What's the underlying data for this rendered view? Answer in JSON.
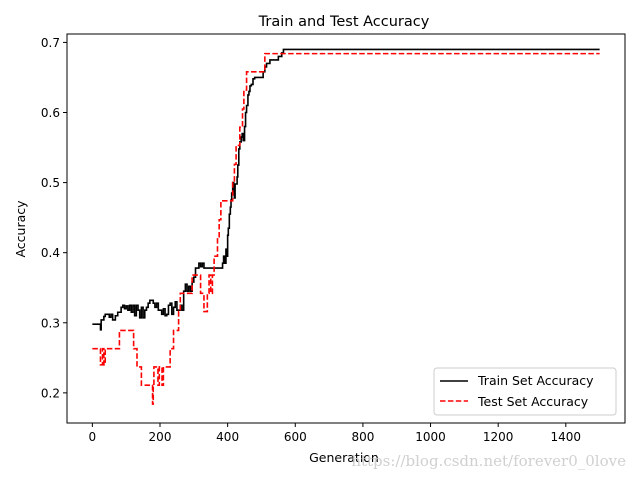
{
  "chart_data": {
    "type": "line",
    "title": "Train and Test Accuracy",
    "xlabel": "Generation",
    "ylabel": "Accuracy",
    "xlim": [
      -75,
      1575
    ],
    "ylim": [
      0.157,
      0.712
    ],
    "xticks": [
      0,
      200,
      400,
      600,
      800,
      1000,
      1200,
      1400
    ],
    "yticks": [
      0.2,
      0.3,
      0.4,
      0.5,
      0.6,
      0.7
    ],
    "yticklabels": [
      "0.2",
      "0.3",
      "0.4",
      "0.5",
      "0.6",
      "0.7"
    ],
    "grid": false,
    "legend_position": "lower-right",
    "series": [
      {
        "name": "Train Set Accuracy",
        "color": "#000000",
        "dash": "solid",
        "x": [
          0,
          22,
          24,
          26,
          30,
          34,
          38,
          42,
          50,
          55,
          60,
          68,
          75,
          80,
          85,
          90,
          95,
          100,
          105,
          110,
          115,
          120,
          125,
          130,
          135,
          140,
          145,
          150,
          155,
          160,
          165,
          170,
          175,
          180,
          185,
          190,
          195,
          200,
          205,
          210,
          215,
          220,
          225,
          230,
          235,
          240,
          245,
          250,
          255,
          260,
          265,
          270,
          275,
          280,
          285,
          290,
          295,
          300,
          305,
          310,
          315,
          320,
          325,
          330,
          335,
          340,
          345,
          350,
          355,
          360,
          365,
          370,
          375,
          380,
          385,
          388,
          392,
          395,
          398,
          400,
          402,
          405,
          408,
          410,
          412,
          415,
          418,
          420,
          422,
          425,
          428,
          430,
          433,
          436,
          440,
          443,
          446,
          450,
          453,
          456,
          460,
          463,
          466,
          470,
          475,
          480,
          485,
          490,
          495,
          500,
          505,
          510,
          515,
          520,
          525,
          530,
          535,
          540,
          545,
          550,
          555,
          560,
          565,
          570,
          580,
          600,
          700,
          800,
          900,
          1000,
          1100,
          1200,
          1300,
          1400,
          1500
        ],
        "y": [
          0.298,
          0.298,
          0.29,
          0.304,
          0.304,
          0.309,
          0.312,
          0.312,
          0.308,
          0.312,
          0.304,
          0.31,
          0.315,
          0.315,
          0.322,
          0.325,
          0.32,
          0.324,
          0.318,
          0.325,
          0.315,
          0.325,
          0.31,
          0.325,
          0.318,
          0.307,
          0.322,
          0.307,
          0.318,
          0.322,
          0.328,
          0.332,
          0.332,
          0.328,
          0.322,
          0.328,
          0.318,
          0.318,
          0.312,
          0.32,
          0.31,
          0.312,
          0.325,
          0.328,
          0.312,
          0.322,
          0.33,
          0.318,
          0.318,
          0.325,
          0.318,
          0.345,
          0.355,
          0.345,
          0.352,
          0.345,
          0.358,
          0.365,
          0.378,
          0.378,
          0.385,
          0.38,
          0.385,
          0.378,
          0.378,
          0.378,
          0.378,
          0.378,
          0.378,
          0.378,
          0.378,
          0.378,
          0.378,
          0.378,
          0.385,
          0.395,
          0.385,
          0.405,
          0.395,
          0.425,
          0.435,
          0.455,
          0.465,
          0.475,
          0.485,
          0.5,
          0.488,
          0.478,
          0.498,
          0.498,
          0.508,
          0.525,
          0.548,
          0.558,
          0.565,
          0.57,
          0.56,
          0.58,
          0.6,
          0.61,
          0.625,
          0.63,
          0.638,
          0.64,
          0.648,
          0.65,
          0.65,
          0.65,
          0.65,
          0.65,
          0.658,
          0.665,
          0.67,
          0.67,
          0.675,
          0.675,
          0.675,
          0.675,
          0.675,
          0.68,
          0.68,
          0.685,
          0.69,
          0.69,
          0.69,
          0.69,
          0.69,
          0.69,
          0.69,
          0.69,
          0.69,
          0.69,
          0.69,
          0.69,
          0.69
        ]
      },
      {
        "name": "Test Set Accuracy",
        "color": "#ff0000",
        "dash": "dashed",
        "x": [
          0,
          22,
          24,
          30,
          34,
          38,
          42,
          55,
          60,
          70,
          78,
          80,
          90,
          100,
          110,
          118,
          122,
          128,
          132,
          140,
          145,
          150,
          160,
          170,
          175,
          178,
          180,
          182,
          186,
          190,
          194,
          198,
          202,
          206,
          210,
          215,
          220,
          225,
          230,
          235,
          240,
          245,
          250,
          255,
          260,
          265,
          270,
          275,
          280,
          285,
          290,
          295,
          300,
          310,
          320,
          325,
          330,
          335,
          340,
          345,
          350,
          355,
          360,
          365,
          370,
          375,
          380,
          385,
          390,
          395,
          400,
          405,
          410,
          415,
          420,
          425,
          428,
          432,
          436,
          440,
          444,
          448,
          452,
          456,
          460,
          465,
          470,
          480,
          490,
          500,
          510,
          520,
          530,
          540,
          550,
          560,
          570,
          600,
          800,
          1000,
          1200,
          1400,
          1500
        ],
        "y": [
          0.263,
          0.263,
          0.24,
          0.263,
          0.24,
          0.263,
          0.263,
          0.263,
          0.263,
          0.263,
          0.263,
          0.289,
          0.289,
          0.289,
          0.289,
          0.289,
          0.263,
          0.263,
          0.237,
          0.237,
          0.211,
          0.211,
          0.211,
          0.211,
          0.211,
          0.184,
          0.211,
          0.237,
          0.237,
          0.237,
          0.211,
          0.237,
          0.237,
          0.211,
          0.237,
          0.237,
          0.237,
          0.237,
          0.263,
          0.263,
          0.289,
          0.289,
          0.289,
          0.316,
          0.342,
          0.342,
          0.342,
          0.342,
          0.342,
          0.342,
          0.342,
          0.368,
          0.368,
          0.368,
          0.342,
          0.342,
          0.316,
          0.316,
          0.342,
          0.368,
          0.342,
          0.368,
          0.395,
          0.395,
          0.421,
          0.447,
          0.474,
          0.474,
          0.474,
          0.474,
          0.474,
          0.474,
          0.474,
          0.5,
          0.526,
          0.553,
          0.553,
          0.553,
          0.579,
          0.579,
          0.605,
          0.632,
          0.632,
          0.658,
          0.658,
          0.658,
          0.658,
          0.658,
          0.658,
          0.658,
          0.684,
          0.684,
          0.684,
          0.684,
          0.684,
          0.684,
          0.684,
          0.684,
          0.684,
          0.684,
          0.684,
          0.684,
          0.684
        ]
      }
    ]
  },
  "watermark": "https://blog.csdn.net/forever0_0love"
}
